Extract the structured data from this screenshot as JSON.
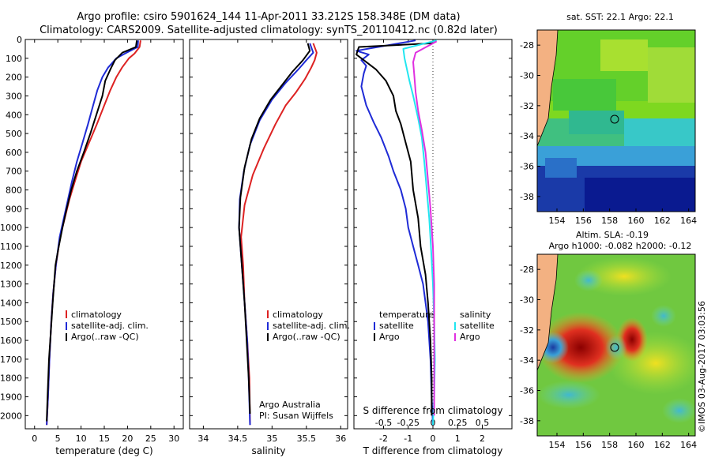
{
  "header": {
    "line1": "Argo profile: csiro 5901624_144 11-Apr-2011 33.212S 158.348E (DM data)",
    "line2": "Climatology: CARS2009. Satellite-adjusted climatology: synTS_20110412.nc (0.82d later)"
  },
  "colors": {
    "climatology": "#dd2222",
    "satellite": "#1f2bd6",
    "argo": "#000000",
    "sat_salinity": "#22e6f0",
    "argo_salinity": "#e030e0",
    "land": "#f3b182"
  },
  "chart_data": [
    {
      "type": "line",
      "xlabel": "temperature (deg C)",
      "ylabel": "",
      "xlim": [
        -2,
        32
      ],
      "ylim": [
        2070,
        0
      ],
      "xticks": [
        "0",
        "5",
        "10",
        "15",
        "20",
        "25",
        "30"
      ],
      "yticks": [
        "0",
        "100",
        "200",
        "300",
        "400",
        "500",
        "600",
        "700",
        "800",
        "900",
        "1000",
        "1100",
        "1200",
        "1300",
        "1400",
        "1500",
        "1600",
        "1700",
        "1800",
        "1900",
        "2000"
      ],
      "legend": [
        "climatology",
        "satellite-adj. clim.",
        "Argo(..raw -QC)"
      ],
      "series": [
        {
          "name": "climatology",
          "points": [
            [
              22.8,
              5
            ],
            [
              22.6,
              40
            ],
            [
              21.5,
              75
            ],
            [
              20.3,
              100
            ],
            [
              18.8,
              150
            ],
            [
              17.6,
              200
            ],
            [
              16.3,
              270
            ],
            [
              15.0,
              350
            ],
            [
              13.4,
              450
            ],
            [
              11.7,
              550
            ],
            [
              10.0,
              650
            ],
            [
              8.6,
              760
            ],
            [
              7.5,
              850
            ],
            [
              6.5,
              950
            ],
            [
              5.5,
              1050
            ],
            [
              4.6,
              1200
            ],
            [
              4.0,
              1350
            ],
            [
              3.6,
              1500
            ],
            [
              3.2,
              1700
            ],
            [
              2.9,
              1900
            ],
            [
              2.6,
              2050
            ]
          ]
        },
        {
          "name": "satellite-adj. clim.",
          "points": [
            [
              22.3,
              5
            ],
            [
              22.2,
              40
            ],
            [
              19.8,
              70
            ],
            [
              17.6,
              100
            ],
            [
              15.8,
              150
            ],
            [
              14.6,
              200
            ],
            [
              13.5,
              270
            ],
            [
              12.6,
              350
            ],
            [
              11.5,
              450
            ],
            [
              10.3,
              550
            ],
            [
              9.1,
              650
            ],
            [
              8.0,
              760
            ],
            [
              7.2,
              850
            ],
            [
              6.3,
              950
            ],
            [
              5.4,
              1050
            ],
            [
              4.6,
              1200
            ],
            [
              4.0,
              1350
            ],
            [
              3.6,
              1500
            ],
            [
              3.2,
              1700
            ],
            [
              2.9,
              1900
            ],
            [
              2.6,
              2050
            ]
          ]
        },
        {
          "name": "Argo(..raw -QC)",
          "points": [
            [
              22.0,
              5
            ],
            [
              21.8,
              40
            ],
            [
              18.9,
              70
            ],
            [
              17.3,
              110
            ],
            [
              16.3,
              160
            ],
            [
              15.2,
              220
            ],
            [
              14.6,
              300
            ],
            [
              13.3,
              400
            ],
            [
              12.0,
              500
            ],
            [
              10.6,
              600
            ],
            [
              9.1,
              700
            ],
            [
              7.9,
              800
            ],
            [
              6.9,
              900
            ],
            [
              6.0,
              1000
            ],
            [
              5.2,
              1100
            ],
            [
              4.5,
              1200
            ],
            [
              3.9,
              1400
            ],
            [
              3.5,
              1550
            ],
            [
              3.1,
              1700
            ],
            [
              2.8,
              1900
            ],
            [
              2.6,
              2030
            ]
          ]
        }
      ]
    },
    {
      "type": "line",
      "xlabel": "salinity",
      "ylabel": "",
      "xlim": [
        33.8,
        36.1
      ],
      "ylim": [
        2070,
        0
      ],
      "xticks": [
        "34",
        "34.5",
        "35",
        "35.5",
        "36"
      ],
      "legend": [
        "climatology",
        "satellite-adj. clim.",
        "Argo(..raw -QC)"
      ],
      "annotation": [
        "Argo Australia",
        "PI: Susan Wijffels"
      ],
      "series": [
        {
          "name": "climatology",
          "points": [
            [
              35.6,
              20
            ],
            [
              35.65,
              70
            ],
            [
              35.62,
              110
            ],
            [
              35.57,
              150
            ],
            [
              35.48,
              210
            ],
            [
              35.35,
              280
            ],
            [
              35.2,
              350
            ],
            [
              35.05,
              450
            ],
            [
              34.88,
              580
            ],
            [
              34.72,
              720
            ],
            [
              34.6,
              880
            ],
            [
              34.55,
              1050
            ],
            [
              34.58,
              1200
            ],
            [
              34.6,
              1400
            ],
            [
              34.64,
              1600
            ],
            [
              34.67,
              1800
            ],
            [
              34.68,
              2050
            ]
          ]
        },
        {
          "name": "satellite-adj. clim.",
          "points": [
            [
              35.55,
              20
            ],
            [
              35.6,
              70
            ],
            [
              35.5,
              110
            ],
            [
              35.38,
              160
            ],
            [
              35.2,
              230
            ],
            [
              35.0,
              320
            ],
            [
              34.82,
              430
            ],
            [
              34.68,
              560
            ],
            [
              34.59,
              700
            ],
            [
              34.53,
              850
            ],
            [
              34.52,
              1000
            ],
            [
              34.56,
              1200
            ],
            [
              34.6,
              1400
            ],
            [
              34.64,
              1600
            ],
            [
              34.66,
              1800
            ],
            [
              34.68,
              2050
            ]
          ]
        },
        {
          "name": "Argo(..raw -QC)",
          "points": [
            [
              35.52,
              20
            ],
            [
              35.55,
              60
            ],
            [
              35.45,
              110
            ],
            [
              35.3,
              170
            ],
            [
              35.15,
              240
            ],
            [
              34.98,
              320
            ],
            [
              34.82,
              420
            ],
            [
              34.7,
              530
            ],
            [
              34.6,
              680
            ],
            [
              34.54,
              840
            ],
            [
              34.52,
              1000
            ],
            [
              34.56,
              1200
            ],
            [
              34.6,
              1400
            ],
            [
              34.63,
              1600
            ],
            [
              34.66,
              1800
            ],
            [
              34.68,
              1990
            ]
          ]
        }
      ]
    },
    {
      "type": "line",
      "xlabel": "T difference from climatology",
      "ylabel": "",
      "xlim": [
        -3.2,
        3.2
      ],
      "ylim": [
        2070,
        0
      ],
      "xticks": [
        "-2",
        "-1",
        "0",
        "1",
        "2"
      ],
      "secondary_xlabel": "S difference from climatology",
      "secondary_xticks": [
        "-0.5",
        "-0.25",
        "0",
        "0.25",
        "0.5"
      ],
      "legend": [
        "temperature",
        "satellite",
        "Argo",
        "salinity",
        "satellite",
        "Argo"
      ],
      "series": [
        {
          "name": "satellite",
          "points": [
            [
              -0.7,
              5
            ],
            [
              -3.1,
              60
            ],
            [
              -2.6,
              80
            ],
            [
              -2.9,
              110
            ],
            [
              -2.7,
              140
            ],
            [
              -2.8,
              180
            ],
            [
              -2.9,
              250
            ],
            [
              -2.7,
              350
            ],
            [
              -2.4,
              440
            ],
            [
              -2.1,
              520
            ],
            [
              -1.8,
              620
            ],
            [
              -1.6,
              700
            ],
            [
              -1.3,
              800
            ],
            [
              -1.1,
              900
            ],
            [
              -1.0,
              1000
            ],
            [
              -0.8,
              1100
            ],
            [
              -0.6,
              1200
            ],
            [
              -0.4,
              1300
            ],
            [
              -0.2,
              1500
            ],
            [
              -0.1,
              1700
            ],
            [
              -0.05,
              1900
            ],
            [
              0,
              2050
            ]
          ]
        },
        {
          "name": "Argo",
          "points": [
            [
              0,
              20
            ],
            [
              -3.0,
              40
            ],
            [
              -3.1,
              80
            ],
            [
              -2.8,
              110
            ],
            [
              -2.3,
              160
            ],
            [
              -1.9,
              220
            ],
            [
              -1.6,
              300
            ],
            [
              -1.5,
              380
            ],
            [
              -1.3,
              450
            ],
            [
              -1.1,
              550
            ],
            [
              -0.9,
              650
            ],
            [
              -0.8,
              800
            ],
            [
              -0.6,
              950
            ],
            [
              -0.5,
              1100
            ],
            [
              -0.3,
              1250
            ],
            [
              -0.2,
              1400
            ],
            [
              -0.1,
              1600
            ],
            [
              -0.05,
              1800
            ],
            [
              -0.05,
              2000
            ]
          ]
        },
        {
          "name": "salinity satellite",
          "points": [
            [
              0.15,
              5
            ],
            [
              -1.2,
              50
            ],
            [
              -1.15,
              100
            ],
            [
              -1.05,
              160
            ],
            [
              -0.95,
              220
            ],
            [
              -0.8,
              300
            ],
            [
              -0.6,
              420
            ],
            [
              -0.45,
              520
            ],
            [
              -0.35,
              650
            ],
            [
              -0.25,
              800
            ],
            [
              -0.15,
              950
            ],
            [
              -0.08,
              1100
            ],
            [
              0,
              1300
            ],
            [
              0.05,
              1500
            ],
            [
              0.08,
              1700
            ],
            [
              0.05,
              1900
            ],
            [
              0,
              2050
            ]
          ]
        },
        {
          "name": "salinity Argo",
          "points": [
            [
              0.15,
              10
            ],
            [
              -0.7,
              70
            ],
            [
              -0.8,
              120
            ],
            [
              -0.75,
              200
            ],
            [
              -0.7,
              280
            ],
            [
              -0.6,
              380
            ],
            [
              -0.45,
              480
            ],
            [
              -0.3,
              600
            ],
            [
              -0.2,
              750
            ],
            [
              -0.1,
              900
            ],
            [
              0,
              1100
            ],
            [
              0.05,
              1300
            ],
            [
              0.05,
              1500
            ],
            [
              0.05,
              1700
            ],
            [
              0.05,
              1900
            ],
            [
              0.05,
              2000
            ]
          ]
        }
      ]
    }
  ],
  "maps": {
    "top": {
      "title": "sat. SST: 22.1  Argo: 22.1",
      "xticks": [
        "154",
        "156",
        "158",
        "160",
        "162",
        "164"
      ],
      "yticks": [
        "-28",
        "-30",
        "-32",
        "-34",
        "-36",
        "-38"
      ]
    },
    "bottom": {
      "title_line1": "Altim. SLA: -0.19",
      "title_line2": "Argo h1000: -0.082 h2000: -0.12",
      "xticks": [
        "154",
        "156",
        "158",
        "160",
        "162",
        "164"
      ],
      "yticks": [
        "-28",
        "-30",
        "-32",
        "-34",
        "-36",
        "-38"
      ]
    }
  },
  "credit": "©IMOS 03-Aug-2017 03:03:56"
}
